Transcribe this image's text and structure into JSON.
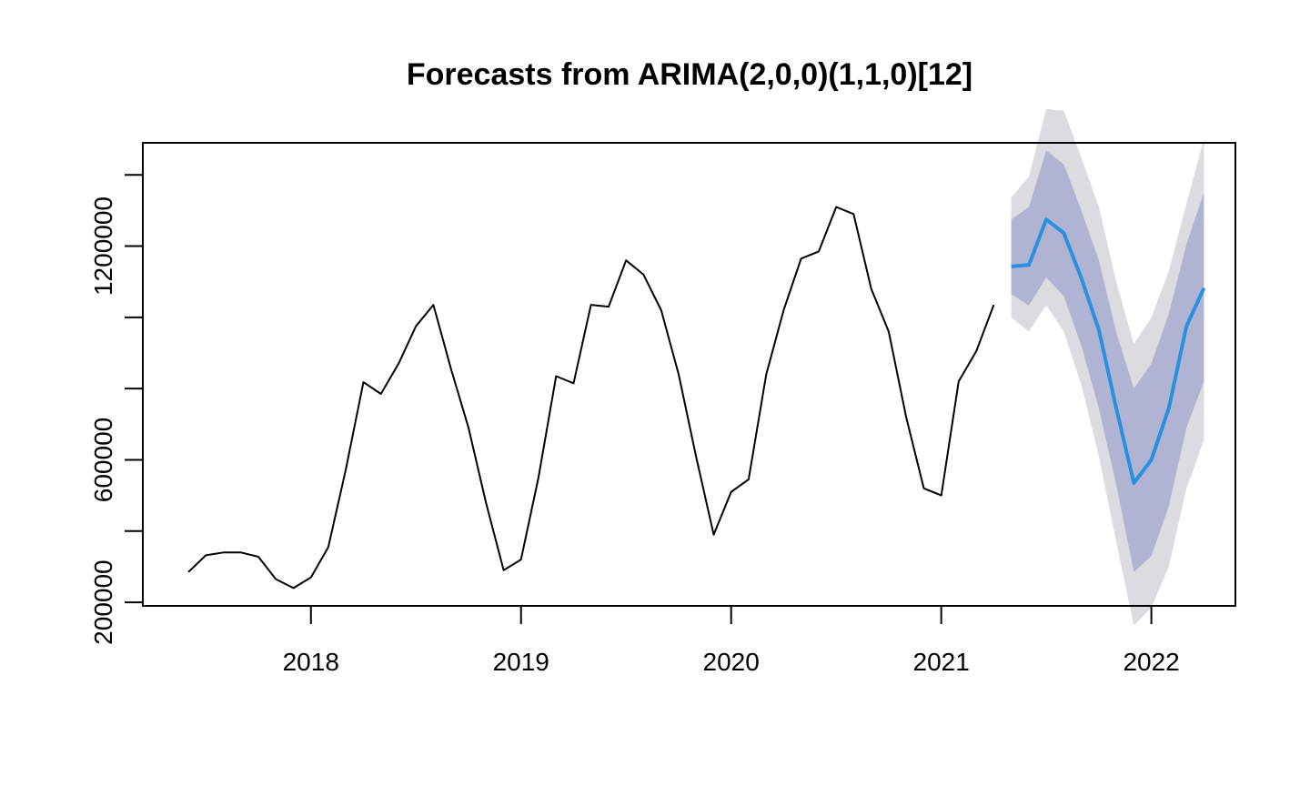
{
  "chart_data": {
    "type": "line",
    "title": "Forecasts from ARIMA(2,0,0)(1,1,0)[12]",
    "xlabel": "",
    "ylabel": "",
    "xlim": [
      2017.2,
      2022.4
    ],
    "ylim": [
      190000,
      1490000
    ],
    "x_ticks": [
      2018,
      2019,
      2020,
      2021,
      2022
    ],
    "x_tick_labels": [
      "2018",
      "2019",
      "2020",
      "2021",
      "2022"
    ],
    "y_ticks": [
      200000,
      400000,
      600000,
      800000,
      1000000,
      1200000,
      1400000
    ],
    "y_tick_labels": [
      "200000",
      "",
      "600000",
      "",
      "",
      "1200000",
      ""
    ],
    "grid": false,
    "colors": {
      "history": "#000000",
      "forecast": "#2a8fe0",
      "band80": "#b0b4d2",
      "band95": "#dbdbe0"
    },
    "history": {
      "x": [
        2017.417,
        2017.5,
        2017.583,
        2017.667,
        2017.75,
        2017.833,
        2017.917,
        2018.0,
        2018.083,
        2018.167,
        2018.25,
        2018.333,
        2018.417,
        2018.5,
        2018.583,
        2018.667,
        2018.75,
        2018.833,
        2018.917,
        2019.0,
        2019.083,
        2019.167,
        2019.25,
        2019.333,
        2019.417,
        2019.5,
        2019.583,
        2019.667,
        2019.75,
        2019.833,
        2019.917,
        2020.0,
        2020.083,
        2020.167,
        2020.25,
        2020.333,
        2020.417,
        2020.5,
        2020.583,
        2020.667,
        2020.75,
        2020.833,
        2020.917,
        2021.0,
        2021.083,
        2021.167,
        2021.25
      ],
      "values": [
        285000,
        332000,
        340000,
        340000,
        328000,
        265000,
        240000,
        270000,
        355000,
        575000,
        818000,
        785000,
        870000,
        975000,
        1035000,
        855000,
        690000,
        480000,
        290000,
        320000,
        550000,
        835000,
        815000,
        1035000,
        1030000,
        1160000,
        1120000,
        1020000,
        840000,
        610000,
        390000,
        510000,
        545000,
        840000,
        1020000,
        1165000,
        1185000,
        1310000,
        1290000,
        1080000,
        960000,
        720000,
        520000,
        500000,
        820000,
        905000,
        1035000
      ]
    },
    "forecast": {
      "x": [
        2021.333,
        2021.417,
        2021.5,
        2021.583,
        2021.667,
        2021.75,
        2021.833,
        2021.917,
        2022.0,
        2022.083,
        2022.167,
        2022.25
      ],
      "mean": [
        1143000,
        1147000,
        1275000,
        1237000,
        1110000,
        965000,
        745000,
        535000,
        600000,
        745000,
        975000,
        1082000
      ],
      "lo80": [
        1065000,
        1033000,
        1112000,
        1060000,
        920000,
        745000,
        530000,
        285000,
        330000,
        470000,
        690000,
        820000
      ],
      "hi80": [
        1275000,
        1310000,
        1469000,
        1430000,
        1300000,
        1160000,
        958000,
        800000,
        870000,
        1010000,
        1205000,
        1350000
      ],
      "lo95": [
        1000000,
        960000,
        1035000,
        960000,
        810000,
        610000,
        370000,
        135000,
        185000,
        300000,
        520000,
        655000
      ],
      "hi95": [
        1337000,
        1395000,
        1585000,
        1580000,
        1448000,
        1310000,
        1100000,
        925000,
        1000000,
        1130000,
        1320000,
        1500000
      ]
    }
  }
}
